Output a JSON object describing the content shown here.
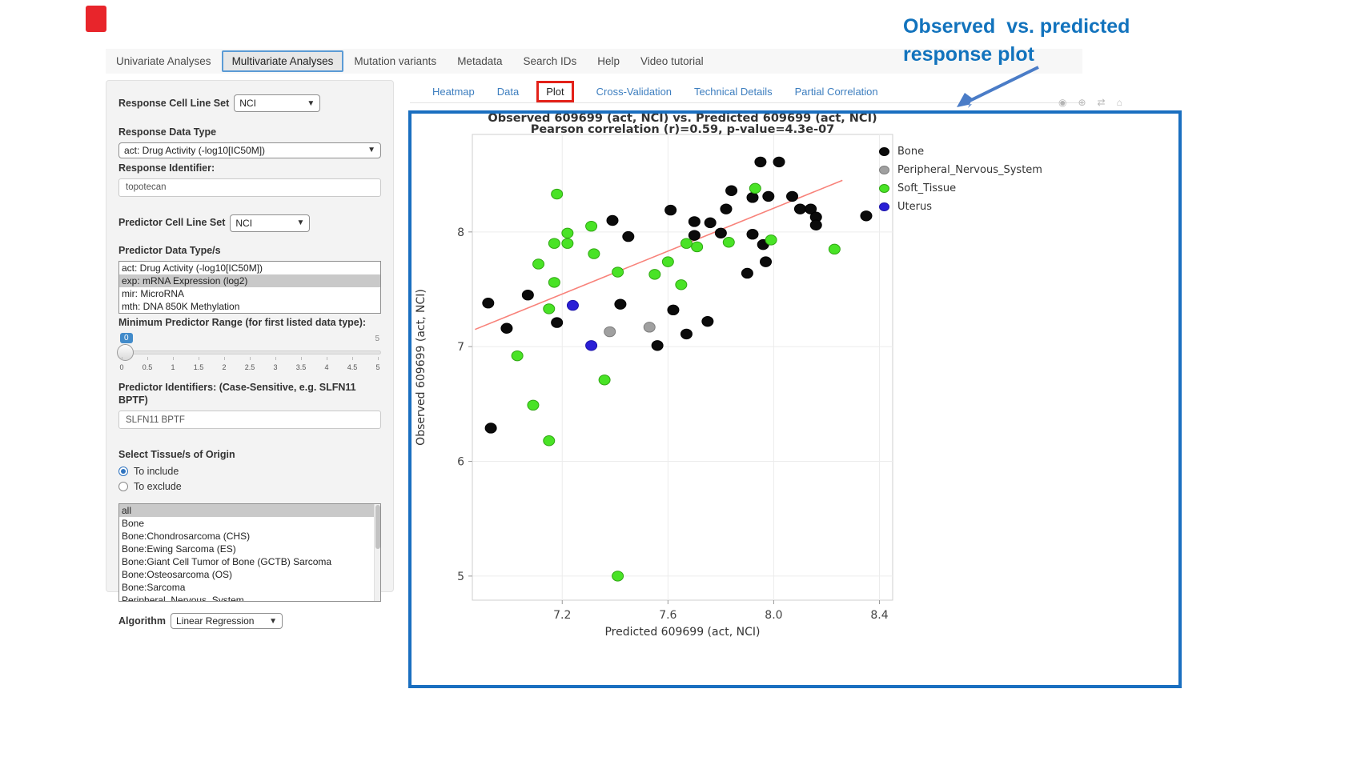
{
  "nav": {
    "items": [
      {
        "label": "Univariate Analyses"
      },
      {
        "label": "Multivariate Analyses"
      },
      {
        "label": "Mutation variants"
      },
      {
        "label": "Metadata"
      },
      {
        "label": "Search IDs"
      },
      {
        "label": "Help"
      },
      {
        "label": "Video tutorial"
      }
    ],
    "active": "Multivariate Analyses"
  },
  "subtabs": {
    "items": [
      {
        "label": "Heatmap"
      },
      {
        "label": "Data"
      },
      {
        "label": "Plot"
      },
      {
        "label": "Cross-Validation"
      },
      {
        "label": "Technical Details"
      },
      {
        "label": "Partial Correlation"
      }
    ],
    "active": "Plot"
  },
  "sidebar": {
    "response_cell_line_set": {
      "label": "Response Cell Line Set",
      "value": "NCI"
    },
    "response_data_type": {
      "label": "Response Data Type",
      "value": "act: Drug Activity (-log10[IC50M])"
    },
    "response_identifier": {
      "label": "Response Identifier:",
      "value": "topotecan"
    },
    "predictor_cell_line_set": {
      "label": "Predictor Cell Line Set",
      "value": "NCI"
    },
    "predictor_data_types": {
      "label": "Predictor Data Type/s",
      "options": [
        "act: Drug Activity (-log10[IC50M])",
        "exp: mRNA Expression (log2)",
        "mir: MicroRNA",
        "mth: DNA 850K Methylation"
      ],
      "selected": "exp: mRNA Expression (log2)"
    },
    "min_predictor_range": {
      "label": "Minimum Predictor Range (for first listed data type):",
      "value": "0",
      "max_label": "5",
      "ticks": [
        "0",
        "0.5",
        "1",
        "1.5",
        "2",
        "2.5",
        "3",
        "3.5",
        "4",
        "4.5",
        "5"
      ]
    },
    "predictor_identifiers": {
      "label": "Predictor Identifiers: (Case-Sensitive, e.g. SLFN11 BPTF)",
      "value": "SLFN11 BPTF"
    },
    "tissue_origin": {
      "label": "Select Tissue/s of Origin",
      "radio_options": [
        "To include",
        "To exclude"
      ],
      "radio_selected": "To include",
      "list": [
        "all",
        "Bone",
        "Bone:Chondrosarcoma (CHS)",
        "Bone:Ewing Sarcoma (ES)",
        "Bone:Giant Cell Tumor of Bone (GCTB) Sarcoma",
        "Bone:Osteosarcoma (OS)",
        "Bone:Sarcoma",
        "Peripheral_Nervous_System"
      ],
      "selected": "all"
    },
    "algorithm": {
      "label": "Algorithm",
      "value": "Linear Regression"
    }
  },
  "annotation": {
    "line1": "Observed  vs. predicted",
    "line2": "response plot",
    "color": "#1273bd"
  },
  "chart_data": {
    "type": "scatter",
    "title": "Observed 609699 (act, NCI) vs. Predicted 609699 (act, NCI)",
    "subtitle": "Pearson correlation (r)=0.59, p-value=4.3e-07",
    "xlabel": "Predicted 609699 (act, NCI)",
    "ylabel": "Observed 609699 (act, NCI)",
    "xlim": [
      6.86,
      8.45
    ],
    "ylim": [
      4.79,
      8.85
    ],
    "xticks": [
      7.2,
      7.6,
      8.0,
      8.4
    ],
    "yticks": [
      5,
      6,
      7,
      8
    ],
    "grid": true,
    "legend_position": "right",
    "trend_line": {
      "x1": 6.87,
      "y1": 7.15,
      "x2": 8.26,
      "y2": 8.45,
      "color": "#f8827a"
    },
    "series": [
      {
        "name": "Bone",
        "color": "#0b0b0b",
        "stroke": "#000000",
        "points": [
          [
            6.93,
            6.29
          ],
          [
            6.92,
            7.38
          ],
          [
            7.07,
            7.45
          ],
          [
            6.99,
            7.16
          ],
          [
            7.18,
            7.21
          ],
          [
            7.42,
            7.37
          ],
          [
            7.56,
            7.01
          ],
          [
            7.39,
            8.1
          ],
          [
            7.45,
            7.96
          ],
          [
            7.61,
            8.19
          ],
          [
            7.7,
            8.09
          ],
          [
            7.7,
            7.97
          ],
          [
            7.76,
            8.08
          ],
          [
            7.8,
            7.99
          ],
          [
            7.84,
            8.36
          ],
          [
            7.95,
            8.61
          ],
          [
            8.02,
            8.61
          ],
          [
            7.92,
            8.3
          ],
          [
            7.98,
            8.31
          ],
          [
            8.07,
            8.31
          ],
          [
            8.1,
            8.2
          ],
          [
            8.14,
            8.2
          ],
          [
            8.16,
            8.13
          ],
          [
            7.92,
            7.98
          ],
          [
            7.96,
            7.89
          ],
          [
            7.82,
            8.2
          ],
          [
            7.62,
            7.32
          ],
          [
            7.75,
            7.22
          ],
          [
            7.67,
            7.11
          ],
          [
            7.9,
            7.64
          ],
          [
            7.97,
            7.74
          ],
          [
            8.35,
            8.14
          ],
          [
            8.16,
            8.06
          ]
        ]
      },
      {
        "name": "Peripheral_Nervous_System",
        "color": "#a0a0a0",
        "stroke": "#7d7d7d",
        "points": [
          [
            7.38,
            7.13
          ],
          [
            7.53,
            7.17
          ]
        ]
      },
      {
        "name": "Soft_Tissue",
        "color": "#49e326",
        "stroke": "#2fa612",
        "points": [
          [
            7.18,
            8.33
          ],
          [
            7.93,
            8.38
          ],
          [
            7.31,
            8.05
          ],
          [
            7.22,
            7.99
          ],
          [
            7.17,
            7.9
          ],
          [
            7.22,
            7.9
          ],
          [
            7.32,
            7.81
          ],
          [
            7.11,
            7.72
          ],
          [
            7.41,
            7.65
          ],
          [
            7.17,
            7.56
          ],
          [
            7.15,
            7.33
          ],
          [
            7.03,
            6.92
          ],
          [
            7.65,
            7.54
          ],
          [
            7.55,
            7.63
          ],
          [
            7.6,
            7.74
          ],
          [
            7.67,
            7.9
          ],
          [
            7.71,
            7.87
          ],
          [
            7.83,
            7.91
          ],
          [
            7.99,
            7.93
          ],
          [
            8.23,
            7.85
          ],
          [
            7.09,
            6.49
          ],
          [
            7.15,
            6.18
          ],
          [
            7.36,
            6.71
          ],
          [
            7.41,
            5.0
          ]
        ]
      },
      {
        "name": "Uterus",
        "color": "#2a1fd6",
        "stroke": "#1b13a8",
        "points": [
          [
            7.24,
            7.36
          ],
          [
            7.31,
            7.01
          ]
        ]
      }
    ]
  }
}
